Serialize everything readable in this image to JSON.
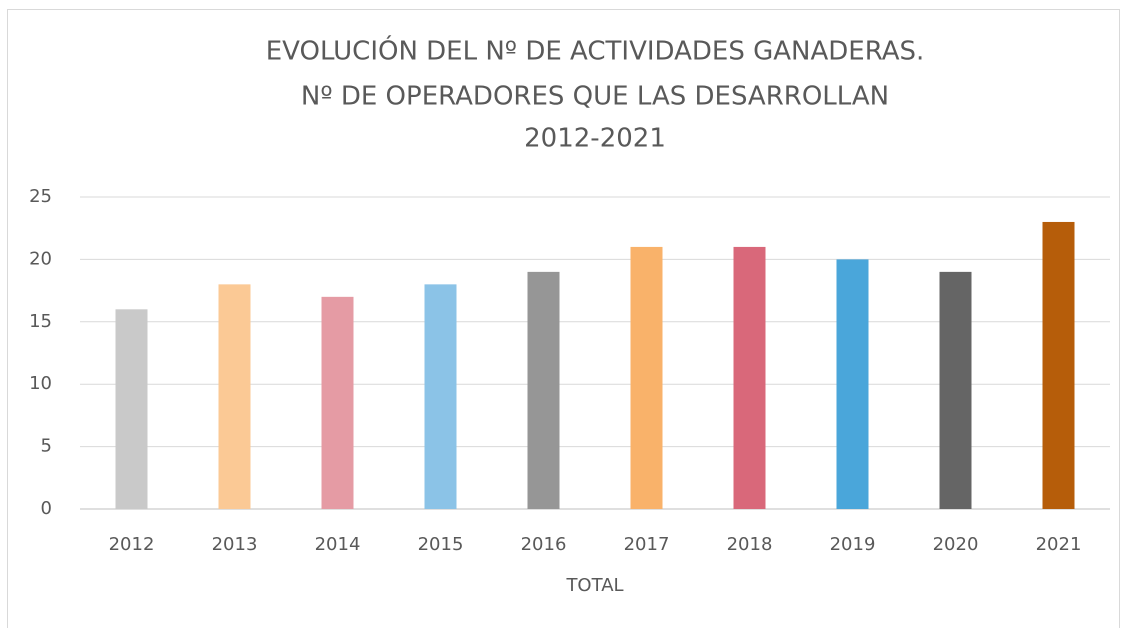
{
  "chart_data": {
    "type": "bar",
    "title": [
      "EVOLUCIÓN DEL Nº DE ACTIVIDADES GANADERAS.",
      "Nº DE OPERADORES QUE LAS DESARROLLAN",
      "2012-2021"
    ],
    "x_label": "TOTAL",
    "categories": [
      "2012",
      "2013",
      "2014",
      "2015",
      "2016",
      "2017",
      "2018",
      "2019",
      "2020",
      "2021"
    ],
    "values": [
      16,
      18,
      17,
      18,
      19,
      21,
      21,
      20,
      19,
      23
    ],
    "colors": [
      "#c9c9c9",
      "#fbc995",
      "#e59ba4",
      "#8bc3e7",
      "#969696",
      "#f9b26a",
      "#d9687a",
      "#4aa6da",
      "#656565",
      "#b65d0a"
    ],
    "ylim": [
      0,
      25
    ],
    "yticks": [
      0,
      5,
      10,
      15,
      20,
      25
    ],
    "grid": true
  }
}
